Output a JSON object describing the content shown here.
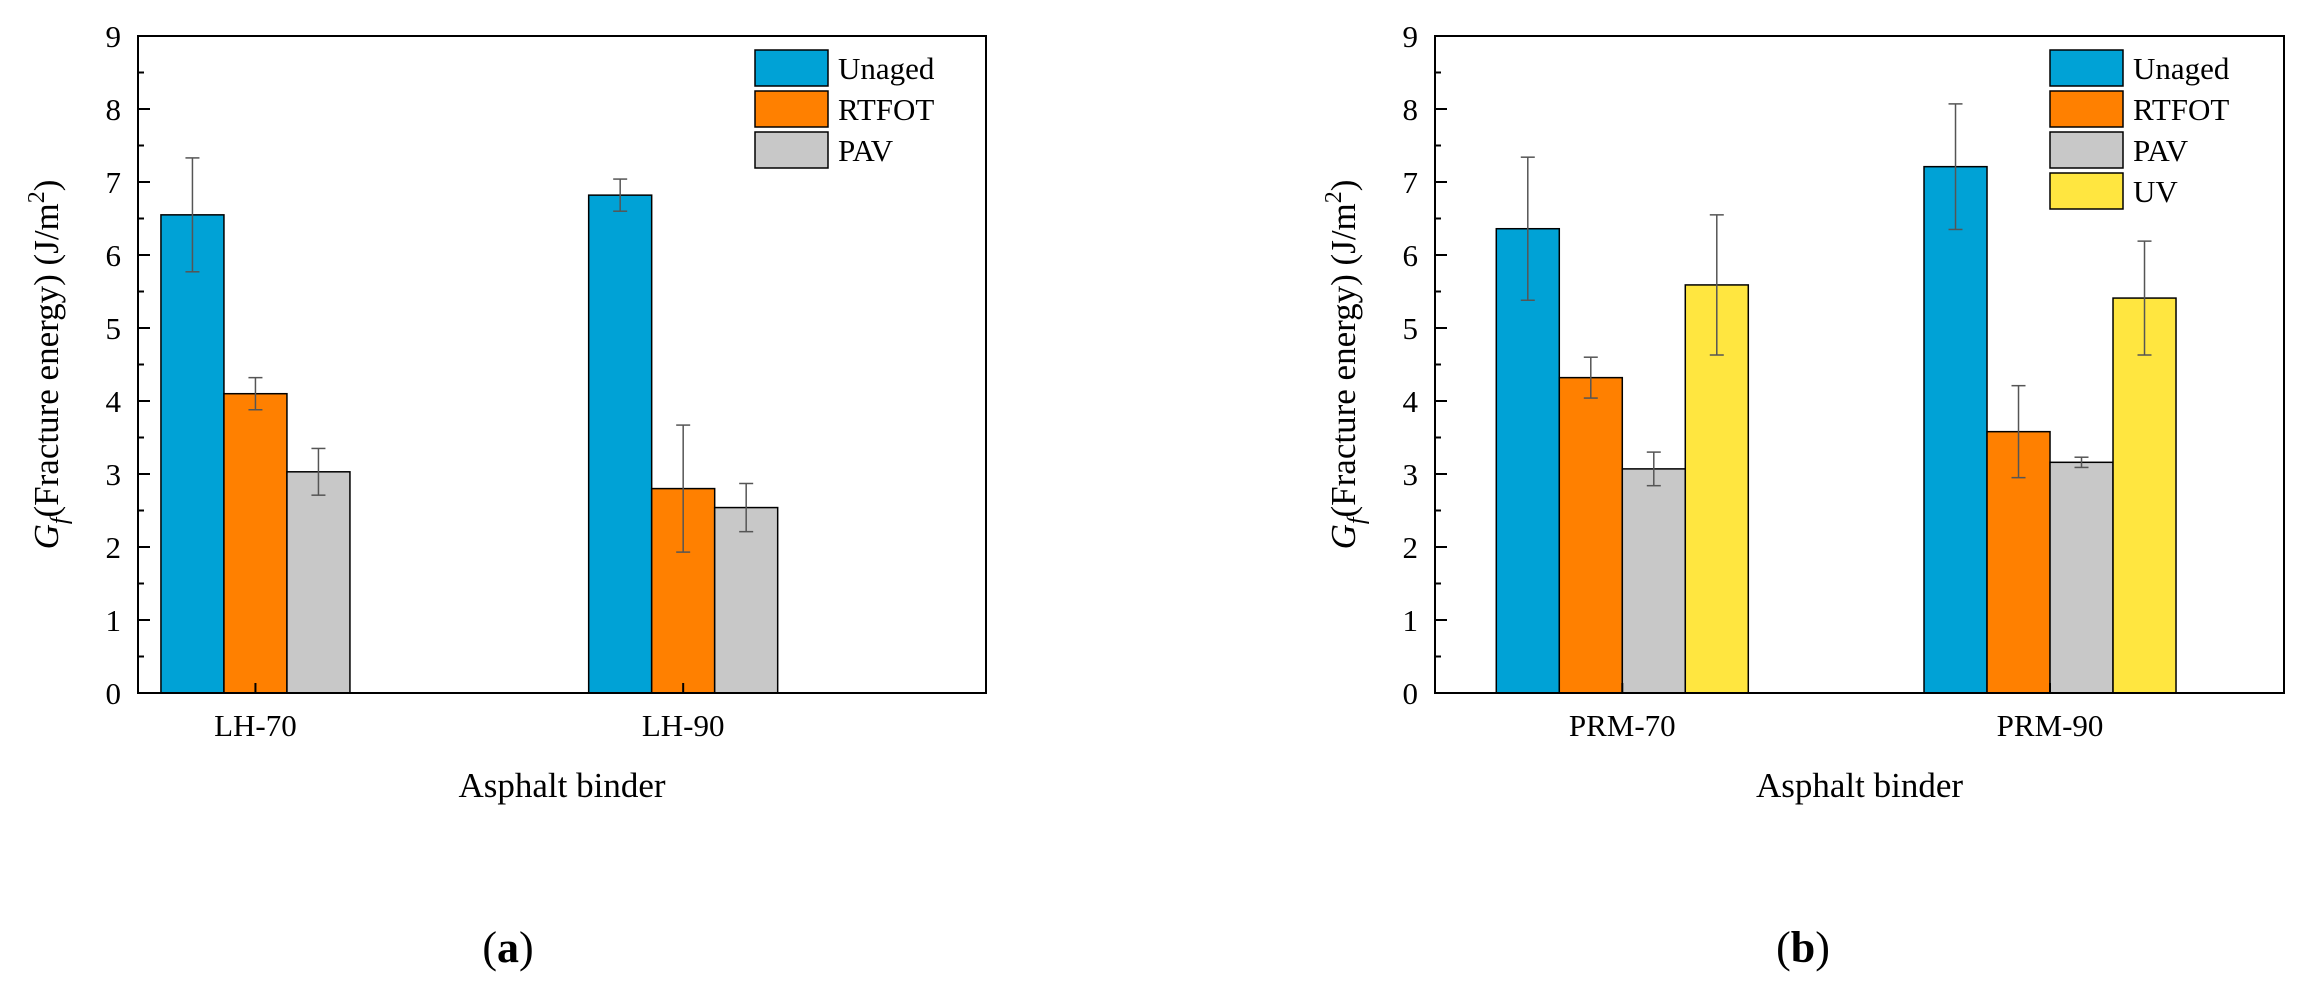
{
  "colors": {
    "Unaged": "#00A2D6",
    "RTFOT": "#FF8000",
    "PAV": "#C8C8C8",
    "UV": "#FFE640",
    "error": "#555555"
  },
  "chart_data": [
    {
      "type": "bar",
      "panel_label": "a",
      "categories": [
        "LH-70",
        "LH-90"
      ],
      "series": [
        {
          "name": "Unaged",
          "values": [
            6.55,
            6.82
          ],
          "errors": [
            0.78,
            0.22
          ]
        },
        {
          "name": "RTFOT",
          "values": [
            4.1,
            2.8
          ],
          "errors": [
            0.22,
            0.87
          ]
        },
        {
          "name": "PAV",
          "values": [
            3.03,
            2.54
          ],
          "errors": [
            0.32,
            0.33
          ]
        }
      ],
      "xlabel": "Asphalt binder",
      "ylabel_main": "G",
      "ylabel_sub": "f",
      "ylabel_text": "(Fracture energy) (J/m",
      "ylabel_sup": "2",
      "ylabel_close": ")",
      "ylim": [
        0,
        9
      ],
      "yticks": [
        "0",
        "1",
        "2",
        "3",
        "4",
        "5",
        "6",
        "7",
        "8",
        "9"
      ],
      "legend_position": "top-right",
      "grid": false
    },
    {
      "type": "bar",
      "panel_label": "b",
      "categories": [
        "PRM-70",
        "PRM-90"
      ],
      "series": [
        {
          "name": "Unaged",
          "values": [
            6.36,
            7.21
          ],
          "errors": [
            0.98,
            0.86
          ]
        },
        {
          "name": "RTFOT",
          "values": [
            4.32,
            3.58
          ],
          "errors": [
            0.28,
            0.63
          ]
        },
        {
          "name": "PAV",
          "values": [
            3.07,
            3.16
          ],
          "errors": [
            0.23,
            0.07
          ]
        },
        {
          "name": "UV",
          "values": [
            5.59,
            5.41
          ],
          "errors": [
            0.96,
            0.78
          ]
        }
      ],
      "xlabel": "Asphalt binder",
      "ylabel_main": "G",
      "ylabel_sub": "f",
      "ylabel_text": "(Fracture energy) (J/m",
      "ylabel_sup": "2",
      "ylabel_close": ")",
      "ylim": [
        0,
        9
      ],
      "yticks": [
        "0",
        "1",
        "2",
        "3",
        "4",
        "5",
        "6",
        "7",
        "8",
        "9"
      ],
      "legend_position": "top-right",
      "grid": false
    }
  ]
}
